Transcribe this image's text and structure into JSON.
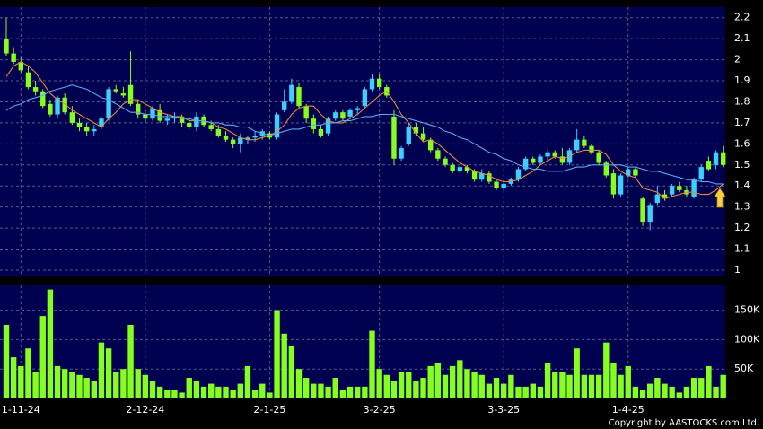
{
  "charts": [
    {
      "type": "candlestick",
      "categories": [
        null,
        null,
        "1-11-24",
        null,
        null,
        null,
        null,
        null,
        null,
        null,
        null,
        null,
        null,
        null,
        null,
        null,
        null,
        null,
        null,
        "2-12-24",
        null,
        null,
        null,
        null,
        null,
        null,
        null,
        null,
        null,
        null,
        null,
        null,
        null,
        null,
        null,
        null,
        "2-1-25",
        null,
        null,
        null,
        null,
        null,
        null,
        null,
        null,
        null,
        null,
        null,
        null,
        null,
        null,
        "3-2-25",
        null,
        null,
        null,
        null,
        null,
        null,
        null,
        null,
        null,
        null,
        null,
        null,
        null,
        null,
        null,
        null,
        "3-3-25",
        null,
        null,
        null,
        null,
        null,
        null,
        null,
        null,
        null,
        null,
        null,
        null,
        null,
        null,
        null,
        null,
        "1-4-25",
        null,
        null,
        null,
        null,
        null,
        null,
        null,
        null,
        null,
        null,
        null,
        null,
        null
      ],
      "open": [
        2.1,
        2.03,
        1.99,
        1.94,
        1.87,
        1.85,
        1.79,
        1.74,
        1.82,
        1.75,
        1.7,
        1.68,
        1.66,
        1.68,
        1.72,
        1.86,
        1.84,
        1.88,
        1.79,
        1.74,
        1.72,
        1.76,
        1.71,
        1.72,
        1.73,
        1.7,
        1.68,
        1.73,
        1.69,
        1.67,
        1.64,
        1.62,
        1.6,
        1.62,
        1.63,
        1.64,
        1.65,
        1.63,
        1.76,
        1.8,
        1.87,
        1.78,
        1.72,
        1.67,
        1.65,
        1.72,
        1.75,
        1.73,
        1.76,
        1.78,
        1.86,
        1.91,
        1.87,
        1.73,
        1.53,
        1.6,
        1.68,
        1.65,
        1.62,
        1.57,
        1.53,
        1.5,
        1.47,
        1.49,
        1.47,
        1.43,
        1.46,
        1.42,
        1.39,
        1.41,
        1.43,
        1.48,
        1.53,
        1.51,
        1.54,
        1.56,
        1.54,
        1.51,
        1.57,
        1.62,
        1.59,
        1.56,
        1.51,
        1.46,
        1.36,
        1.45,
        1.48,
        1.34,
        1.23,
        1.32,
        1.36,
        1.36,
        1.4,
        1.38,
        1.35,
        1.43,
        1.52,
        1.5,
        1.56
      ],
      "high": [
        2.2,
        2.06,
        2.01,
        1.97,
        1.9,
        1.86,
        1.81,
        1.83,
        1.84,
        1.78,
        1.72,
        1.7,
        1.69,
        1.73,
        1.87,
        1.88,
        1.87,
        2.04,
        1.81,
        1.76,
        1.78,
        1.79,
        1.74,
        1.75,
        1.74,
        1.73,
        1.75,
        1.74,
        1.71,
        1.69,
        1.66,
        1.63,
        1.65,
        1.64,
        1.66,
        1.67,
        1.66,
        1.75,
        1.86,
        1.91,
        1.89,
        1.79,
        1.74,
        1.69,
        1.73,
        1.76,
        1.76,
        1.77,
        1.78,
        1.87,
        1.93,
        1.93,
        1.88,
        1.76,
        1.59,
        1.7,
        1.7,
        1.68,
        1.63,
        1.58,
        1.54,
        1.51,
        1.5,
        1.5,
        1.48,
        1.48,
        1.47,
        1.43,
        1.42,
        1.44,
        1.49,
        1.54,
        1.54,
        1.55,
        1.57,
        1.57,
        1.58,
        1.58,
        1.67,
        1.64,
        1.6,
        1.57,
        1.52,
        1.48,
        1.46,
        1.49,
        1.49,
        1.35,
        1.32,
        1.4,
        1.38,
        1.41,
        1.42,
        1.4,
        1.44,
        1.5,
        1.54,
        1.57,
        1.59
      ],
      "low": [
        2.02,
        1.98,
        1.94,
        1.86,
        1.83,
        1.77,
        1.73,
        1.72,
        1.74,
        1.69,
        1.66,
        1.64,
        1.64,
        1.67,
        1.71,
        1.84,
        1.82,
        1.78,
        1.72,
        1.7,
        1.71,
        1.7,
        1.69,
        1.7,
        1.68,
        1.67,
        1.66,
        1.68,
        1.66,
        1.63,
        1.61,
        1.58,
        1.56,
        1.6,
        1.61,
        1.62,
        1.62,
        1.62,
        1.75,
        1.79,
        1.77,
        1.7,
        1.65,
        1.63,
        1.64,
        1.71,
        1.71,
        1.72,
        1.74,
        1.77,
        1.85,
        1.86,
        1.82,
        1.5,
        1.52,
        1.59,
        1.64,
        1.61,
        1.56,
        1.52,
        1.49,
        1.46,
        1.46,
        1.46,
        1.42,
        1.42,
        1.41,
        1.38,
        1.38,
        1.4,
        1.42,
        1.47,
        1.5,
        1.5,
        1.52,
        1.53,
        1.5,
        1.5,
        1.56,
        1.58,
        1.55,
        1.5,
        1.44,
        1.34,
        1.35,
        1.44,
        1.44,
        1.21,
        1.19,
        1.31,
        1.33,
        1.35,
        1.37,
        1.35,
        1.34,
        1.42,
        1.47,
        1.48,
        1.49
      ],
      "close": [
        2.03,
        1.99,
        1.95,
        1.87,
        1.85,
        1.78,
        1.74,
        1.82,
        1.75,
        1.7,
        1.68,
        1.66,
        1.67,
        1.72,
        1.86,
        1.85,
        1.83,
        1.79,
        1.74,
        1.72,
        1.77,
        1.71,
        1.72,
        1.73,
        1.7,
        1.68,
        1.73,
        1.69,
        1.67,
        1.64,
        1.62,
        1.6,
        1.63,
        1.63,
        1.64,
        1.66,
        1.63,
        1.74,
        1.8,
        1.88,
        1.78,
        1.72,
        1.67,
        1.64,
        1.72,
        1.75,
        1.72,
        1.76,
        1.77,
        1.86,
        1.91,
        1.87,
        1.83,
        1.53,
        1.58,
        1.68,
        1.65,
        1.62,
        1.57,
        1.53,
        1.5,
        1.47,
        1.49,
        1.47,
        1.43,
        1.46,
        1.42,
        1.39,
        1.41,
        1.43,
        1.48,
        1.53,
        1.51,
        1.54,
        1.56,
        1.54,
        1.51,
        1.57,
        1.62,
        1.59,
        1.56,
        1.51,
        1.45,
        1.36,
        1.45,
        1.48,
        1.45,
        1.23,
        1.31,
        1.36,
        1.34,
        1.4,
        1.38,
        1.36,
        1.43,
        1.49,
        1.48,
        1.56,
        1.5
      ],
      "up_color": "#3ccfff",
      "down_color": "#84ff1e",
      "lines": [
        {
          "color": "#e8873a",
          "values": [
            1.92,
            1.97,
            1.99,
            1.97,
            1.94,
            1.89,
            1.84,
            1.81,
            1.79,
            1.76,
            1.74,
            1.72,
            1.7,
            1.68,
            1.72,
            1.75,
            1.79,
            1.81,
            1.81,
            1.79,
            1.77,
            1.75,
            1.74,
            1.73,
            1.73,
            1.71,
            1.71,
            1.71,
            1.7,
            1.68,
            1.67,
            1.65,
            1.63,
            1.62,
            1.62,
            1.63,
            1.64,
            1.66,
            1.69,
            1.74,
            1.77,
            1.78,
            1.78,
            1.74,
            1.71,
            1.7,
            1.7,
            1.72,
            1.74,
            1.77,
            1.8,
            1.83,
            1.85,
            1.8,
            1.74,
            1.7,
            1.65,
            1.61,
            1.62,
            1.6,
            1.57,
            1.54,
            1.51,
            1.49,
            1.47,
            1.46,
            1.45,
            1.43,
            1.42,
            1.42,
            1.43,
            1.45,
            1.47,
            1.5,
            1.52,
            1.54,
            1.53,
            1.54,
            1.56,
            1.57,
            1.57,
            1.57,
            1.55,
            1.5,
            1.47,
            1.45,
            1.44,
            1.39,
            1.38,
            1.37,
            1.34,
            1.35,
            1.36,
            1.37,
            1.37,
            1.36,
            1.36,
            1.38,
            1.41
          ]
        },
        {
          "color": "#5aa8f0",
          "values": [
            1.76,
            1.78,
            1.79,
            1.81,
            1.82,
            1.83,
            1.85,
            1.86,
            1.87,
            1.88,
            1.87,
            1.86,
            1.84,
            1.82,
            1.81,
            1.79,
            1.77,
            1.75,
            1.75,
            1.74,
            1.74,
            1.73,
            1.73,
            1.73,
            1.72,
            1.72,
            1.71,
            1.71,
            1.7,
            1.7,
            1.69,
            1.69,
            1.68,
            1.68,
            1.66,
            1.65,
            1.64,
            1.65,
            1.66,
            1.67,
            1.67,
            1.68,
            1.69,
            1.69,
            1.7,
            1.7,
            1.71,
            1.71,
            1.72,
            1.73,
            1.73,
            1.74,
            1.74,
            1.74,
            1.73,
            1.72,
            1.71,
            1.7,
            1.69,
            1.68,
            1.66,
            1.65,
            1.63,
            1.62,
            1.6,
            1.58,
            1.56,
            1.55,
            1.53,
            1.52,
            1.5,
            1.49,
            1.48,
            1.48,
            1.47,
            1.47,
            1.47,
            1.48,
            1.49,
            1.49,
            1.5,
            1.5,
            1.5,
            1.5,
            1.5,
            1.49,
            1.49,
            1.48,
            1.47,
            1.47,
            1.46,
            1.45,
            1.44,
            1.43,
            1.43,
            1.42,
            1.42,
            1.41,
            1.41
          ]
        }
      ],
      "ylim": [
        0.97,
        2.25
      ],
      "yticks": [
        1,
        1.1,
        1.2,
        1.3,
        1.4,
        1.5,
        1.6,
        1.7,
        1.8,
        1.9,
        2,
        2.1,
        2.2
      ],
      "grid": true
    },
    {
      "type": "bar",
      "values": [
        125000,
        70000,
        55000,
        85000,
        45000,
        140000,
        185000,
        55000,
        50000,
        45000,
        40000,
        35000,
        30000,
        95000,
        85000,
        45000,
        50000,
        125000,
        50000,
        40000,
        30000,
        20000,
        15000,
        15000,
        10000,
        35000,
        30000,
        20000,
        25000,
        20000,
        20000,
        15000,
        25000,
        55000,
        15000,
        25000,
        10000,
        150000,
        110000,
        90000,
        50000,
        35000,
        25000,
        25000,
        20000,
        35000,
        15000,
        20000,
        20000,
        20000,
        115000,
        50000,
        40000,
        30000,
        45000,
        45000,
        30000,
        35000,
        55000,
        60000,
        40000,
        55000,
        65000,
        50000,
        45000,
        40000,
        25000,
        35000,
        25000,
        40000,
        20000,
        20000,
        25000,
        20000,
        60000,
        45000,
        45000,
        40000,
        85000,
        40000,
        40000,
        40000,
        95000,
        60000,
        40000,
        55000,
        20000,
        15000,
        25000,
        35000,
        25000,
        20000,
        10000,
        20000,
        35000,
        35000,
        55000,
        20000,
        40000
      ],
      "color": "#84ff1e",
      "ylim": [
        0,
        192000
      ],
      "yticks": [
        {
          "value": 50000,
          "label": "50K"
        },
        {
          "value": 100000,
          "label": "100K"
        },
        {
          "value": 150000,
          "label": "150K"
        }
      ],
      "grid": true
    }
  ],
  "copyright": "Copyright by AASTOCKS.com Ltd."
}
